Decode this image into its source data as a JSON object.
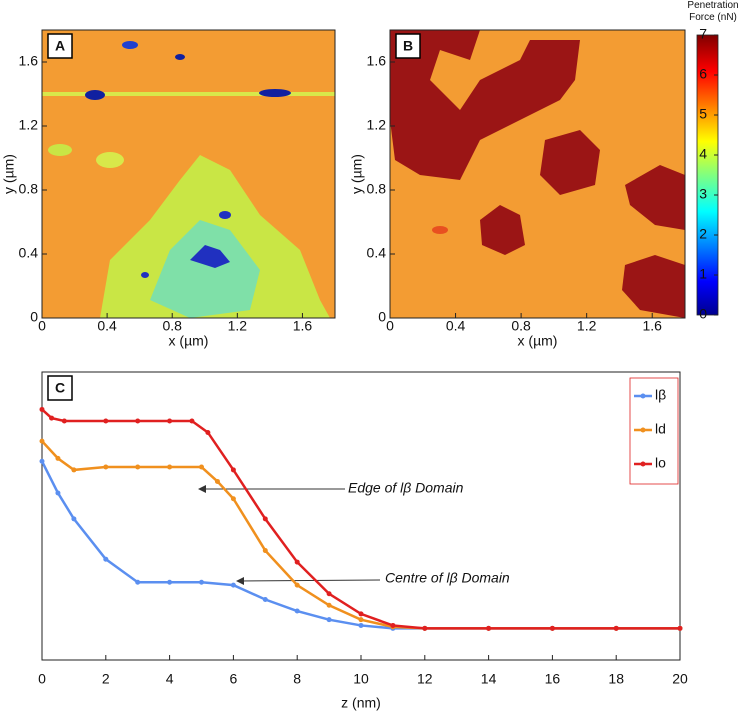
{
  "chart_data": [
    {
      "type": "heatmap",
      "label": "A",
      "xlabel": "x (µm)",
      "ylabel": "y (µm)",
      "xlim": [
        0,
        1.8
      ],
      "ylim": [
        0,
        1.8
      ],
      "xticks": [
        0,
        0.4,
        0.8,
        1.2,
        1.6
      ],
      "yticks": [
        0,
        0.4,
        0.8,
        1.2,
        1.6
      ]
    },
    {
      "type": "heatmap",
      "label": "B",
      "xlabel": "x (µm)",
      "ylabel": "y (µm)",
      "xlim": [
        0,
        1.8
      ],
      "ylim": [
        0,
        1.8
      ],
      "xticks": [
        0,
        0.4,
        0.8,
        1.2,
        1.6
      ],
      "yticks": [
        0,
        0.4,
        0.8,
        1.2,
        1.6
      ],
      "colorbar": {
        "label": "Penetration Force (nN)",
        "lim": [
          0,
          7
        ],
        "ticks": [
          0,
          1,
          2,
          3,
          4,
          5,
          6,
          7
        ]
      }
    },
    {
      "type": "line",
      "label": "C",
      "xlabel": "z (nm)",
      "xlim": [
        0,
        20
      ],
      "ylim": [
        0,
        10
      ],
      "xticks": [
        0,
        2,
        4,
        6,
        8,
        10,
        12,
        14,
        16,
        18,
        20
      ],
      "legend": "upper right",
      "annotations": [
        "Edge of lβ Domain",
        "Centre of lβ Domain"
      ],
      "series": [
        {
          "name": "lβ",
          "color": "#5b8ff0",
          "x": [
            0,
            0.5,
            1,
            2,
            3,
            4,
            5,
            6,
            7,
            8,
            9,
            10,
            11,
            12,
            14,
            16,
            18,
            20
          ],
          "values": [
            6.9,
            5.8,
            4.9,
            3.5,
            2.7,
            2.7,
            2.7,
            2.6,
            2.1,
            1.7,
            1.4,
            1.2,
            1.1,
            1.1,
            1.1,
            1.1,
            1.1,
            1.1
          ]
        },
        {
          "name": "ld",
          "color": "#f0901e",
          "x": [
            0,
            0.5,
            1,
            2,
            3,
            4,
            5,
            5.5,
            6,
            7,
            8,
            9,
            10,
            11,
            12,
            14,
            16,
            18,
            20
          ],
          "values": [
            7.6,
            7.0,
            6.6,
            6.7,
            6.7,
            6.7,
            6.7,
            6.2,
            5.6,
            3.8,
            2.6,
            1.9,
            1.4,
            1.15,
            1.1,
            1.1,
            1.1,
            1.1,
            1.1
          ]
        },
        {
          "name": "lo",
          "color": "#e02020",
          "x": [
            0,
            0.3,
            0.7,
            2,
            3,
            4,
            4.7,
            5.2,
            6,
            7,
            8,
            9,
            10,
            11,
            12,
            14,
            16,
            18,
            20
          ],
          "values": [
            8.7,
            8.4,
            8.3,
            8.3,
            8.3,
            8.3,
            8.3,
            7.9,
            6.6,
            4.9,
            3.4,
            2.3,
            1.6,
            1.2,
            1.1,
            1.1,
            1.1,
            1.1,
            1.1
          ]
        }
      ]
    }
  ]
}
